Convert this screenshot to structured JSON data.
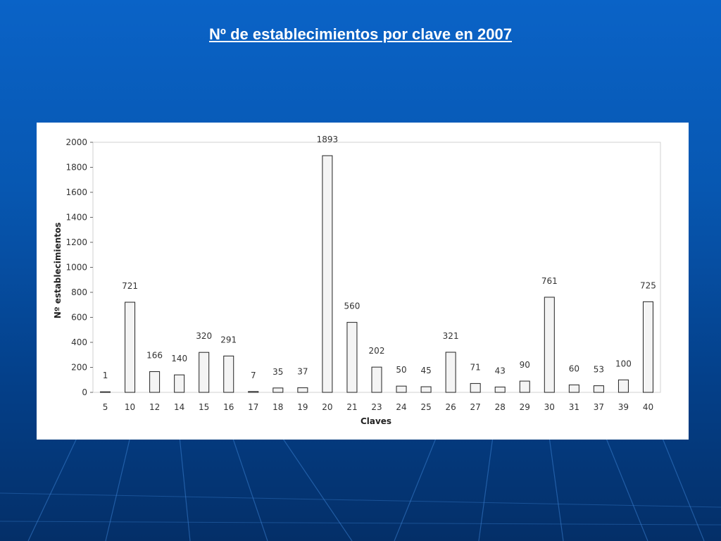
{
  "slide": {
    "title": "Nº de establecimientos por clave en 2007"
  },
  "colors": {
    "background": "#0757b1",
    "panel": "#ffffff",
    "bar_fill": "#f4f4f4",
    "bar_stroke": "#222222",
    "grid": "#d0d0d0"
  },
  "chart_data": {
    "type": "bar",
    "xlabel": "Claves",
    "ylabel": "Nº establecimientos",
    "ylim": [
      0,
      2000
    ],
    "yticks": [
      0,
      200,
      400,
      600,
      800,
      1000,
      1200,
      1400,
      1600,
      1800,
      2000
    ],
    "grid": false,
    "legend": "none",
    "categories": [
      "5",
      "10",
      "12",
      "14",
      "15",
      "16",
      "17",
      "18",
      "19",
      "20",
      "21",
      "23",
      "24",
      "25",
      "26",
      "27",
      "28",
      "29",
      "30",
      "31",
      "37",
      "39",
      "40"
    ],
    "values": [
      1,
      721,
      166,
      140,
      320,
      291,
      7,
      35,
      37,
      1893,
      560,
      202,
      50,
      45,
      321,
      71,
      43,
      90,
      761,
      60,
      53,
      100,
      725
    ]
  }
}
